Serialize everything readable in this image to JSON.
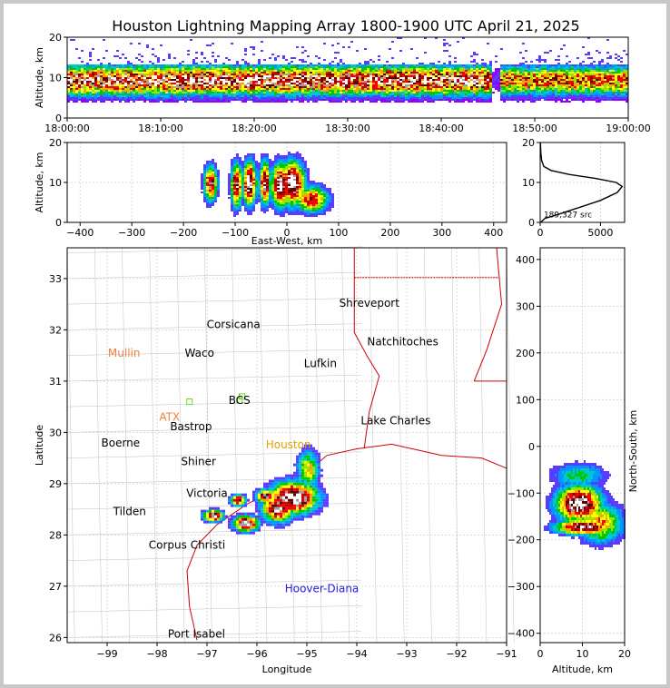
{
  "title": "Houston Lightning Mapping Array 1800-1900 UTC April 21, 2025",
  "colors": {
    "scale": [
      "#9400ff",
      "#5a3cff",
      "#0096ff",
      "#00c8c8",
      "#00c800",
      "#96e600",
      "#ffff00",
      "#ffa000",
      "#ff0000",
      "#c80000",
      "#600000",
      "#ffffff",
      "#a0a0a0"
    ],
    "map_border": "#d00000",
    "counties": "#c0c0c0",
    "station": "#66dd22"
  },
  "chart_data": [
    {
      "type": "heatmap",
      "name": "altitude-time",
      "ylabel": "Altitude, km",
      "ylim": [
        0,
        20
      ],
      "yticks": [
        "0",
        "10",
        "20"
      ],
      "xlim_minutes": [
        0,
        60
      ],
      "xticks": [
        "18:00:00",
        "18:10:00",
        "18:20:00",
        "18:30:00",
        "18:40:00",
        "18:50:00",
        "19:00:00"
      ],
      "grid": true
    },
    {
      "type": "heatmap",
      "name": "east-west-altitude",
      "xlabel": "East-West, km",
      "ylabel": "Altitude, km",
      "xlim": [
        -425,
        425
      ],
      "ylim": [
        0,
        20
      ],
      "xticks": [
        "−400",
        "−300",
        "−200",
        "−100",
        "0",
        "100",
        "200",
        "300",
        "400"
      ],
      "yticks": [
        "0",
        "10",
        "20"
      ],
      "grid": true
    },
    {
      "type": "line",
      "name": "altitude-histogram",
      "xlim": [
        0,
        7000
      ],
      "ylim": [
        0,
        20
      ],
      "xticks": [
        "0",
        "5000"
      ],
      "yticks": [
        "0",
        "10",
        "20"
      ],
      "annotation": "189,327 src",
      "series": [
        {
          "x": [
            40,
            400,
            1500,
            3000,
            5000,
            6400,
            6800,
            6300,
            4600,
            2400,
            900,
            300,
            120,
            50,
            20
          ],
          "y": [
            0,
            1,
            2,
            3.5,
            5.5,
            7.5,
            9,
            10,
            11,
            12,
            13,
            14,
            15.5,
            17.5,
            20
          ]
        }
      ]
    },
    {
      "type": "heatmap",
      "name": "plan-view-map",
      "xlabel": "Longitude",
      "ylabel": "Latitude",
      "xlim": [
        -99.8,
        -91.0
      ],
      "ylim": [
        25.9,
        33.6
      ],
      "xticks": [
        "−99",
        "−98",
        "−97",
        "−96",
        "−95",
        "−94",
        "−93",
        "−92",
        "−91"
      ],
      "yticks": [
        "26",
        "27",
        "28",
        "29",
        "30",
        "31",
        "32",
        "33"
      ],
      "grid": true
    },
    {
      "type": "heatmap",
      "name": "altitude-north-south",
      "xlabel": "Altitude, km",
      "ylabel": "North-South, km",
      "xlim": [
        0,
        20
      ],
      "ylim": [
        -420,
        425
      ],
      "xticks": [
        "0",
        "10",
        "20"
      ],
      "yticks": [
        "−400",
        "−300",
        "−200",
        "−100",
        "0",
        "100",
        "200",
        "300",
        "400"
      ],
      "grid": true
    }
  ],
  "map": {
    "cities": [
      {
        "name": "Shreveport",
        "lon": -93.75,
        "lat": 32.52,
        "color": "#000000"
      },
      {
        "name": "Corsicana",
        "lon": -96.47,
        "lat": 32.1,
        "color": "#000000"
      },
      {
        "name": "Natchitoches",
        "lon": -93.08,
        "lat": 31.77,
        "color": "#000000"
      },
      {
        "name": "Mullin",
        "lon": -98.66,
        "lat": 31.55,
        "color": "#f08040"
      },
      {
        "name": "Waco",
        "lon": -97.15,
        "lat": 31.55,
        "color": "#000000"
      },
      {
        "name": "Lufkin",
        "lon": -94.73,
        "lat": 31.34,
        "color": "#000000"
      },
      {
        "name": "BCS",
        "lon": -96.35,
        "lat": 30.63,
        "color": "#000000"
      },
      {
        "name": "ATX",
        "lon": -97.75,
        "lat": 30.3,
        "color": "#f08040"
      },
      {
        "name": "Bastrop",
        "lon": -97.32,
        "lat": 30.11,
        "color": "#000000"
      },
      {
        "name": "Lake Charles",
        "lon": -93.22,
        "lat": 30.23,
        "color": "#000000"
      },
      {
        "name": "Boerne",
        "lon": -98.73,
        "lat": 29.79,
        "color": "#000000"
      },
      {
        "name": "Houston",
        "lon": -95.37,
        "lat": 29.76,
        "color": "#e0a000"
      },
      {
        "name": "Shiner",
        "lon": -97.17,
        "lat": 29.43,
        "color": "#000000"
      },
      {
        "name": "Victoria",
        "lon": -97.0,
        "lat": 28.81,
        "color": "#000000"
      },
      {
        "name": "Tilden",
        "lon": -98.55,
        "lat": 28.46,
        "color": "#000000"
      },
      {
        "name": "Corpus Christi",
        "lon": -97.4,
        "lat": 27.8,
        "color": "#000000"
      },
      {
        "name": "Hoover-Diana",
        "lon": -94.7,
        "lat": 26.95,
        "color": "#2020e0"
      },
      {
        "name": "Port Isabel",
        "lon": -97.21,
        "lat": 26.07,
        "color": "#000000"
      }
    ],
    "stations": [
      {
        "lon": -97.35,
        "lat": 30.6
      },
      {
        "lon": -96.35,
        "lat": 30.62
      },
      {
        "lon": -96.3,
        "lat": 30.7
      }
    ]
  }
}
